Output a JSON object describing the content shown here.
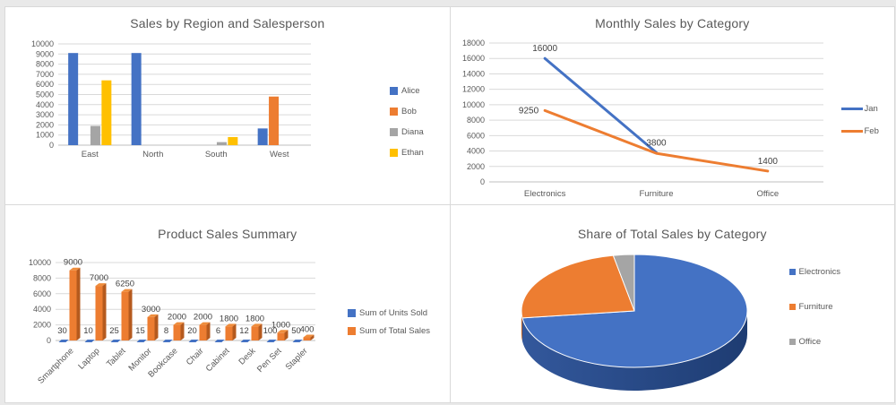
{
  "page": {
    "background": "#e9e9e9",
    "panel_border": "#d9d9d9"
  },
  "colors": {
    "blue": "#4472C4",
    "orange": "#ED7D31",
    "gray": "#A5A5A5",
    "yellow": "#FFC000",
    "blue_side": "#2b4d8f",
    "blue_top": "#3c66b4",
    "orange_side": "#b55a1e",
    "orange_top": "#ef8d3c",
    "gray_side": "#8c8c8c",
    "title": "#595959",
    "axis": "#595959",
    "grid": "#d9d9d9",
    "axis_line": "#bfbfbf",
    "label": "#404040"
  },
  "chart_data": [
    {
      "type": "bar",
      "title": "Sales by Region and Salesperson",
      "categories": [
        "East",
        "North",
        "South",
        "West"
      ],
      "series": [
        {
          "name": "Alice",
          "color_key": "blue",
          "values": [
            9100,
            9100,
            null,
            1650
          ]
        },
        {
          "name": "Bob",
          "color_key": "orange",
          "values": [
            null,
            null,
            null,
            4800
          ]
        },
        {
          "name": "Diana",
          "color_key": "gray",
          "values": [
            1900,
            null,
            300,
            null
          ]
        },
        {
          "name": "Ethan",
          "color_key": "yellow",
          "values": [
            6400,
            null,
            800,
            null
          ]
        }
      ],
      "ylim": [
        0,
        10000
      ],
      "ystep": 1000,
      "grid": true,
      "legend_position": "right"
    },
    {
      "type": "line",
      "title": "Monthly Sales by Category",
      "categories": [
        "Electronics",
        "Furniture",
        "Office"
      ],
      "series": [
        {
          "name": "Jan",
          "color_key": "blue",
          "values": [
            16000,
            3800,
            null
          ]
        },
        {
          "name": "Feb",
          "color_key": "orange",
          "values": [
            9250,
            3700,
            1400
          ]
        }
      ],
      "ylim": [
        0,
        18000
      ],
      "ystep": 2000,
      "grid": true,
      "data_labels": [
        {
          "series": 0,
          "point": 0,
          "text": "16000",
          "pos": "above"
        },
        {
          "series": 1,
          "point": 0,
          "text": "9250",
          "pos": "left"
        },
        {
          "series": 0,
          "point": 1,
          "text": "3800",
          "pos": "above"
        },
        {
          "series": 1,
          "point": 2,
          "text": "1400",
          "pos": "above"
        }
      ],
      "legend_position": "right"
    },
    {
      "type": "bar3d",
      "title": "Product Sales Summary",
      "categories": [
        "Smartphone",
        "Laptop",
        "Tablet",
        "Monitor",
        "Bookcase",
        "Chair",
        "Cabinet",
        "Desk",
        "Pen Set",
        "Stapler"
      ],
      "series": [
        {
          "name": "Sum of Units Sold",
          "color_key": "blue",
          "values": [
            30,
            10,
            25,
            15,
            8,
            20,
            6,
            12,
            100,
            50
          ]
        },
        {
          "name": "Sum of Total Sales",
          "color_key": "orange",
          "values": [
            9000,
            7000,
            6250,
            3000,
            2000,
            2000,
            1800,
            1800,
            1000,
            400
          ]
        }
      ],
      "ylim": [
        0,
        10000
      ],
      "ystep": 2000,
      "grid": true,
      "show_value_labels": true,
      "legend_position": "right"
    },
    {
      "type": "pie3d",
      "title": "Share of Total Sales by Category",
      "categories": [
        "Electronics",
        "Furniture",
        "Office"
      ],
      "share_pct": [
        73,
        24,
        3
      ],
      "color_keys": [
        "blue",
        "orange",
        "gray"
      ],
      "legend_position": "right"
    }
  ]
}
